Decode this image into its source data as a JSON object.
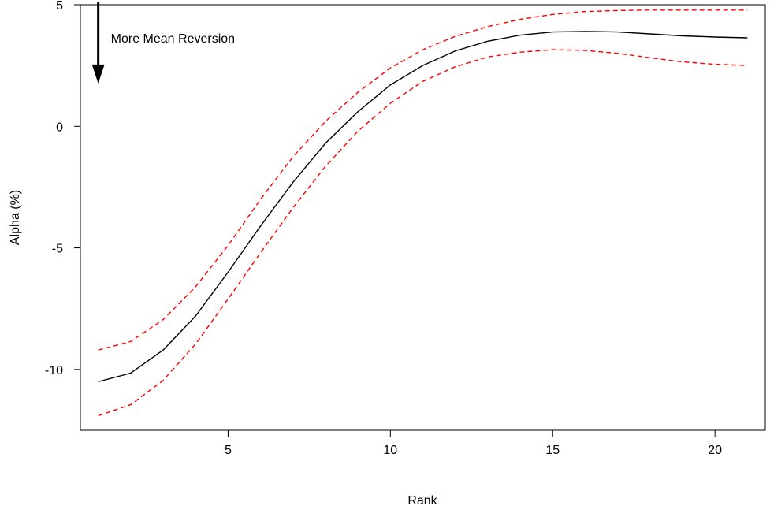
{
  "chart_data": {
    "type": "line",
    "xlabel": "Rank",
    "ylabel": "Alpha (%)",
    "xlim": [
      0.45,
      21.55
    ],
    "ylim": [
      -12.5,
      5
    ],
    "x_ticks": [
      5,
      10,
      15,
      20
    ],
    "y_ticks": [
      -10,
      -5,
      0,
      5
    ],
    "x_tick_labels": [
      "5",
      "10",
      "15",
      "20"
    ],
    "y_tick_labels": [
      "-10",
      "-5",
      "0",
      "5"
    ],
    "grid": false,
    "legend": "none",
    "annotation": {
      "text": "More Mean Reversion",
      "arrow_direction": "down",
      "x": 1,
      "y_from": 5,
      "y_to": 1.7
    },
    "x": [
      1,
      2,
      3,
      4,
      5,
      6,
      7,
      8,
      9,
      10,
      11,
      12,
      13,
      14,
      15,
      16,
      17,
      18,
      19,
      20,
      21
    ],
    "series": [
      {
        "values": [
          -10.5,
          -10.15,
          -9.2,
          -7.8,
          -6.0,
          -4.1,
          -2.3,
          -0.7,
          0.6,
          1.7,
          2.5,
          3.1,
          3.5,
          3.75,
          3.88,
          3.9,
          3.88,
          3.8,
          3.72,
          3.67,
          3.64
        ],
        "color": "#000000",
        "dash": "solid"
      },
      {
        "values": [
          -9.2,
          -8.85,
          -7.95,
          -6.6,
          -4.9,
          -3.0,
          -1.25,
          0.2,
          1.4,
          2.4,
          3.15,
          3.7,
          4.1,
          4.4,
          4.6,
          4.72,
          4.76,
          4.78,
          4.78,
          4.78,
          4.78
        ],
        "color": "#ff0000",
        "dash": "dashed"
      },
      {
        "values": [
          -11.9,
          -11.45,
          -10.45,
          -8.95,
          -7.1,
          -5.2,
          -3.35,
          -1.65,
          -0.2,
          0.95,
          1.85,
          2.45,
          2.85,
          3.05,
          3.15,
          3.12,
          3.0,
          2.82,
          2.65,
          2.55,
          2.5
        ],
        "color": "#ff0000",
        "dash": "dashed"
      }
    ]
  }
}
